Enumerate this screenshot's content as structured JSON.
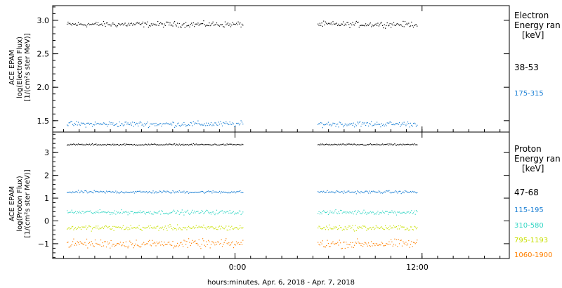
{
  "chart_data": [
    {
      "type": "scatter",
      "ylabel": [
        "ACE EPAM",
        "log(Electron Flux)",
        "[1/(cm²s ster MeV)]"
      ],
      "ylim": [
        1.33,
        3.22
      ],
      "yticks": [
        1.5,
        2.0,
        2.5,
        3.0
      ],
      "ytick_labels": [
        "1.5",
        "2.0",
        "2.5",
        "3.0"
      ],
      "legend_title": [
        "Electron",
        "Energy ran",
        "[keV]"
      ],
      "series": [
        {
          "name": "38-53",
          "color": "#000000",
          "level": 2.94,
          "jitter": 0.035
        },
        {
          "name": "175-315",
          "color": "#1a7fd4",
          "level": 1.45,
          "jitter": 0.035
        }
      ]
    },
    {
      "type": "scatter",
      "ylabel": [
        "ACE EPAM",
        "log(Proton Flux)",
        "[1/(cm²s ster MeV)]"
      ],
      "ylim": [
        -1.65,
        3.9
      ],
      "yticks": [
        -1,
        0,
        1,
        2,
        3
      ],
      "ytick_labels": [
        "−1",
        "0",
        "1",
        "2",
        "3"
      ],
      "legend_title": [
        "Proton",
        "Energy ran",
        "[keV]"
      ],
      "series": [
        {
          "name": "47-68",
          "color": "#000000",
          "level": 3.35,
          "jitter": 0.03
        },
        {
          "name": "115-195",
          "color": "#1a7fd4",
          "level": 1.27,
          "jitter": 0.05
        },
        {
          "name": "310-580",
          "color": "#33d6c4",
          "level": 0.38,
          "jitter": 0.08
        },
        {
          "name": "795-1193",
          "color": "#c8e000",
          "level": -0.3,
          "jitter": 0.1
        },
        {
          "name": "1060-1900",
          "color": "#ff8000",
          "level": -1.0,
          "jitter": 0.16
        }
      ]
    }
  ],
  "x_axis": {
    "tick_labels": [
      "0:00",
      "12:00"
    ],
    "xlabel": "hours:minutes, Apr.  6, 2018 - Apr.  7, 2018",
    "hours_range": [
      -11.7,
      17.6
    ],
    "major_hours": [
      0,
      12
    ],
    "data_segments": [
      [
        -10.8,
        0.5
      ],
      [
        5.3,
        11.7
      ]
    ]
  }
}
